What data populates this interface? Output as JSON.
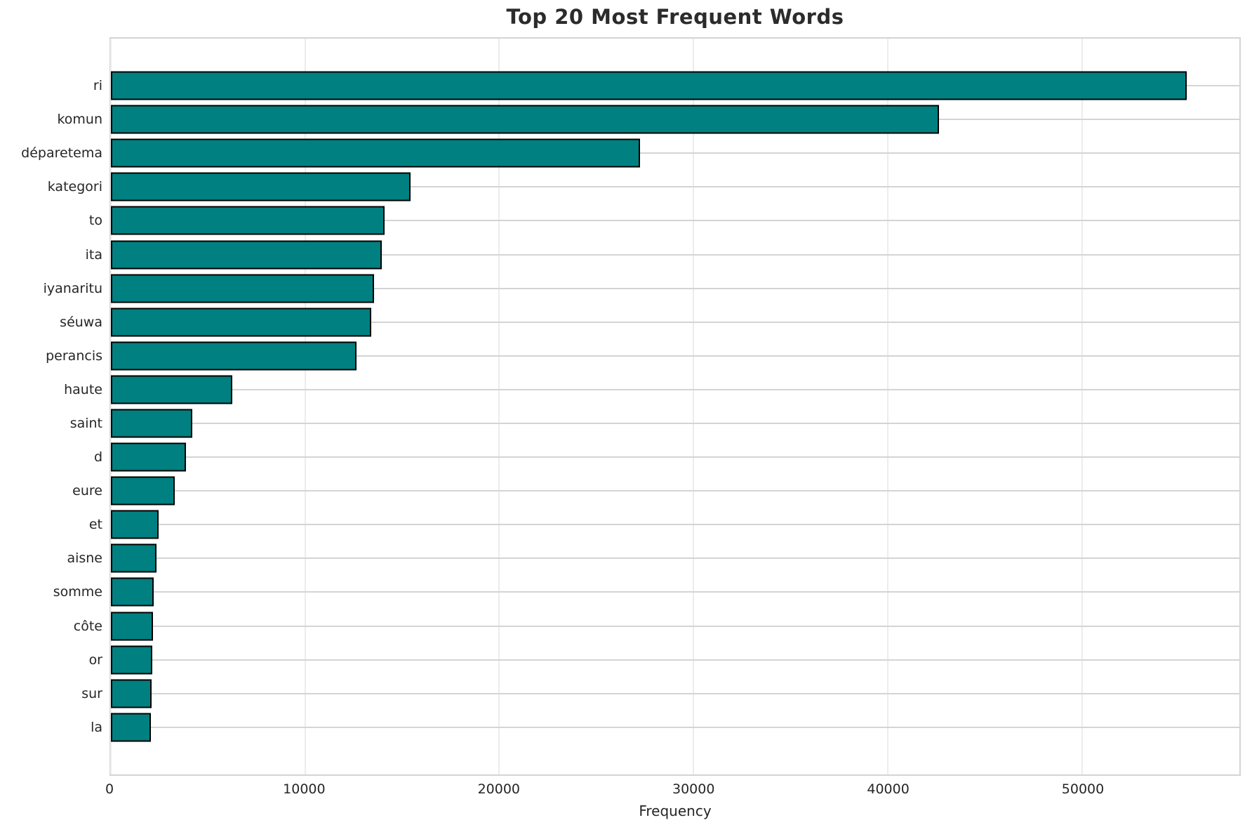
{
  "chart_data": {
    "type": "bar",
    "orientation": "horizontal",
    "title": "Top 20 Most Frequent Words",
    "xlabel": "Frequency",
    "ylabel": "",
    "categories": [
      "ri",
      "komun",
      "déparetema",
      "kategori",
      "to",
      "ita",
      "iyanaritu",
      "séuwa",
      "perancis",
      "haute",
      "saint",
      "d",
      "eure",
      "et",
      "aisne",
      "somme",
      "côte",
      "or",
      "sur",
      "la"
    ],
    "values": [
      55400,
      42650,
      27250,
      15430,
      14100,
      13950,
      13550,
      13410,
      12650,
      6240,
      4180,
      3860,
      3280,
      2450,
      2340,
      2200,
      2160,
      2130,
      2090,
      2055
    ],
    "xlim": [
      0,
      58110
    ],
    "xticks": [
      0,
      10000,
      20000,
      30000,
      40000,
      50000
    ],
    "grid": true,
    "legend": null,
    "colors": {
      "bar_fill": "#008080",
      "bar_edge": "#000000",
      "grid_horizontal": "#d4d4d4",
      "grid_vertical": "#ececec",
      "spine": "#d4d4d4",
      "title_text": "#2b2b2b",
      "tick_text": "#262626",
      "background": "#ffffff"
    }
  }
}
